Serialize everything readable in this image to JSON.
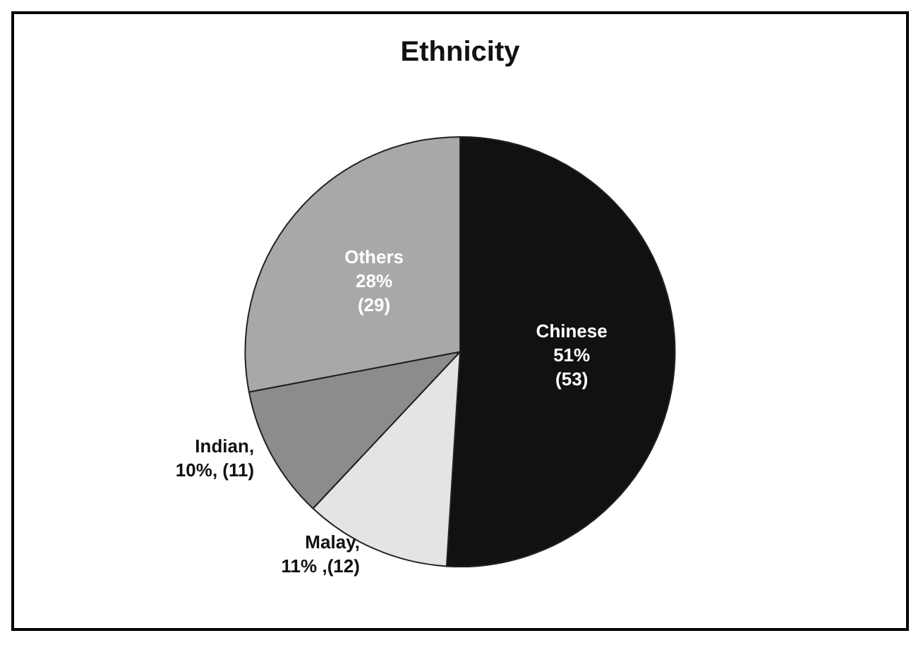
{
  "chart_data": {
    "type": "pie",
    "title": "Ethnicity",
    "categories": [
      "Chinese",
      "Malay",
      "Indian",
      "Others"
    ],
    "values": [
      51,
      11,
      10,
      28
    ],
    "value_labels": [
      "51%\n(53)",
      ",\n11% ,(12)",
      ",\n10%, (11)",
      "28%\n(29)"
    ],
    "colors": [
      "#111111",
      "#e4e4e4",
      "#8c8c8c",
      "#a8a8a8"
    ],
    "legend": false
  }
}
